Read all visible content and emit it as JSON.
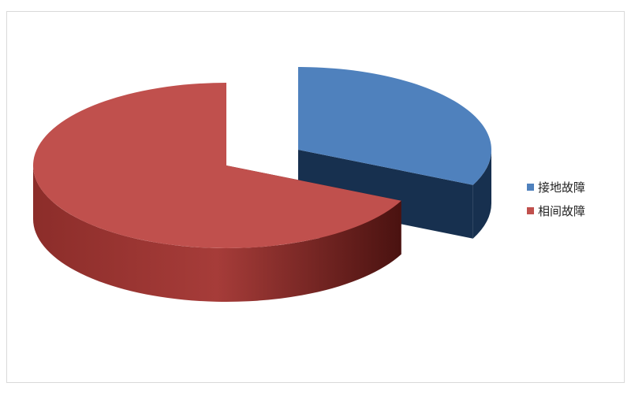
{
  "chart_data": {
    "type": "pie",
    "style": "3d-exploded",
    "series": [
      {
        "name": "接地故障",
        "value": 32,
        "color": "#4f81bd",
        "side_color": "#17304f"
      },
      {
        "name": "相间故障",
        "value": 68,
        "color": "#c0504d",
        "side_color": "#7a2220"
      }
    ],
    "legend_position": "right"
  }
}
